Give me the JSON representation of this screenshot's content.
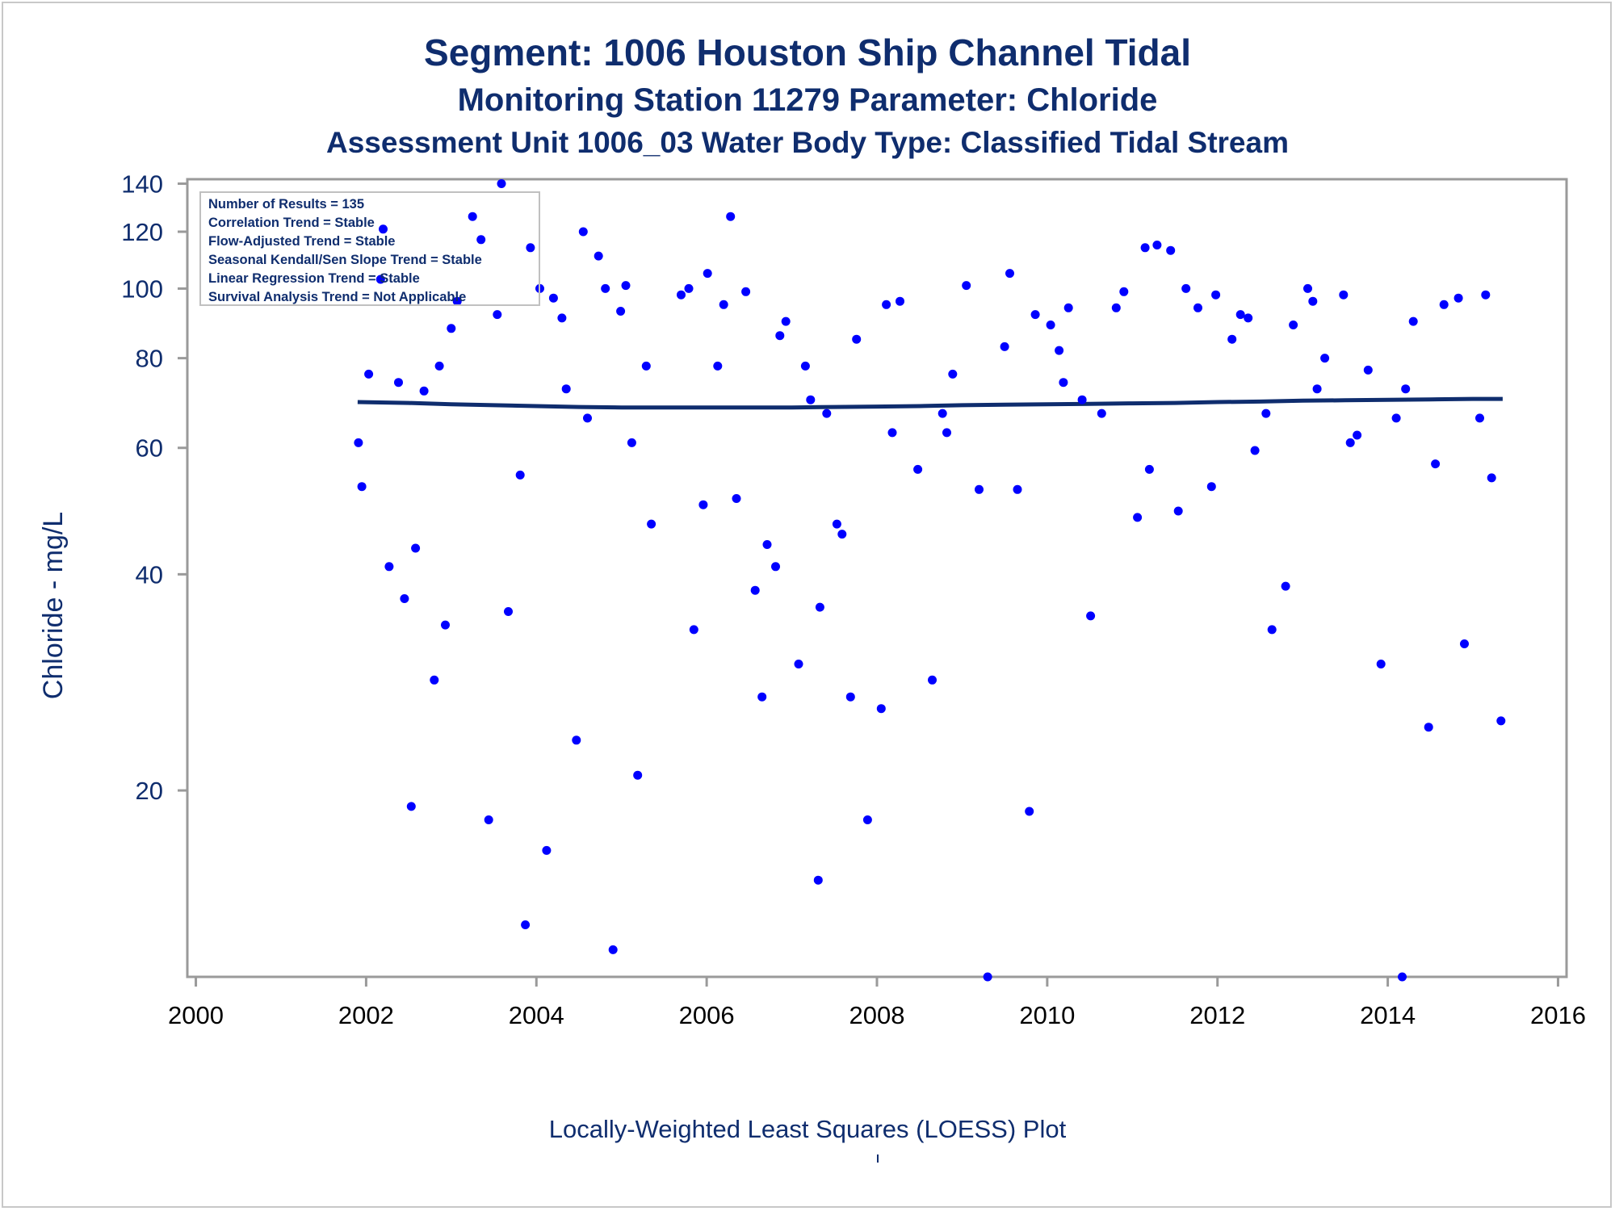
{
  "titles": {
    "line1": "Segment: 1006  Houston Ship Channel Tidal",
    "line2": "Monitoring Station 11279 Parameter: Chloride",
    "line3": "Assessment Unit 1006_03   Water Body Type: Classified Tidal Stream"
  },
  "footnote": "Locally-Weighted Least Squares (LOESS) Plot",
  "inset": [
    "Number of Results = 135",
    "Correlation Trend = Stable",
    "Flow-Adjusted Trend = Stable",
    "Seasonal Kendall/Sen Slope Trend = Stable",
    "Linear Regression Trend = Stable",
    "Survival Analysis Trend = Not Applicable"
  ],
  "colors": {
    "text": "#0f2d6e",
    "points": "#0000ff",
    "loess": "#0f2d6e",
    "axis": "#9a9a9a"
  },
  "chart_data": {
    "type": "scatter",
    "title": "Segment: 1006  Houston Ship Channel Tidal",
    "ylabel": "Chloride - mg/L",
    "xlabel": "",
    "yscale": "log",
    "ylim": [
      11,
      142
    ],
    "xlim": [
      1999.9,
      2016.1
    ],
    "xticks": [
      2000,
      2002,
      2004,
      2006,
      2008,
      2010,
      2012,
      2014,
      2016
    ],
    "yticks": [
      20,
      40,
      60,
      80,
      100,
      120,
      140
    ],
    "legend": "top-left",
    "grid": false,
    "series": [
      {
        "kind": "points",
        "points": [
          [
            2001.91,
            61
          ],
          [
            2001.95,
            53
          ],
          [
            2002.03,
            76
          ],
          [
            2002.17,
            103
          ],
          [
            2002.2,
            121
          ],
          [
            2002.27,
            41
          ],
          [
            2002.38,
            74
          ],
          [
            2002.45,
            37
          ],
          [
            2002.53,
            19
          ],
          [
            2002.58,
            43.5
          ],
          [
            2002.68,
            72
          ],
          [
            2002.8,
            28.5
          ],
          [
            2002.86,
            78
          ],
          [
            2002.93,
            34
          ],
          [
            2003.0,
            88
          ],
          [
            2003.07,
            96
          ],
          [
            2003.25,
            126
          ],
          [
            2003.35,
            117
          ],
          [
            2003.44,
            18.2
          ],
          [
            2003.54,
            92
          ],
          [
            2003.59,
            140
          ],
          [
            2003.67,
            35.5
          ],
          [
            2003.81,
            55
          ],
          [
            2003.87,
            13
          ],
          [
            2003.93,
            114
          ],
          [
            2004.04,
            100
          ],
          [
            2004.12,
            16.5
          ],
          [
            2004.2,
            97
          ],
          [
            2004.3,
            91
          ],
          [
            2004.35,
            72.5
          ],
          [
            2004.47,
            23.5
          ],
          [
            2004.55,
            120
          ],
          [
            2004.6,
            66
          ],
          [
            2004.73,
            111
          ],
          [
            2004.81,
            100
          ],
          [
            2004.9,
            12
          ],
          [
            2004.99,
            93
          ],
          [
            2005.05,
            101
          ],
          [
            2005.12,
            61
          ],
          [
            2005.19,
            21
          ],
          [
            2005.29,
            78
          ],
          [
            2005.35,
            47
          ],
          [
            2005.7,
            98
          ],
          [
            2005.79,
            100
          ],
          [
            2005.85,
            33.5
          ],
          [
            2005.96,
            50
          ],
          [
            2006.01,
            105
          ],
          [
            2006.13,
            78
          ],
          [
            2006.2,
            95
          ],
          [
            2006.28,
            126
          ],
          [
            2006.35,
            51
          ],
          [
            2006.46,
            99
          ],
          [
            2006.57,
            38
          ],
          [
            2006.65,
            27
          ],
          [
            2006.71,
            44
          ],
          [
            2006.81,
            41
          ],
          [
            2006.86,
            86
          ],
          [
            2006.93,
            90
          ],
          [
            2007.08,
            30
          ],
          [
            2007.16,
            78
          ],
          [
            2007.22,
            70
          ],
          [
            2007.31,
            15
          ],
          [
            2007.33,
            36
          ],
          [
            2007.41,
            67
          ],
          [
            2007.53,
            47
          ],
          [
            2007.59,
            45.5
          ],
          [
            2007.69,
            27
          ],
          [
            2007.76,
            85
          ],
          [
            2007.89,
            18.2
          ],
          [
            2008.05,
            26
          ],
          [
            2008.11,
            95
          ],
          [
            2008.18,
            63
          ],
          [
            2008.27,
            96
          ],
          [
            2008.48,
            56
          ],
          [
            2008.65,
            28.5
          ],
          [
            2008.77,
            67
          ],
          [
            2008.82,
            63
          ],
          [
            2008.89,
            76
          ],
          [
            2009.05,
            101
          ],
          [
            2009.2,
            52.5
          ],
          [
            2009.3,
            11
          ],
          [
            2009.5,
            83
          ],
          [
            2009.56,
            105
          ],
          [
            2009.65,
            52.5
          ],
          [
            2009.79,
            18.7
          ],
          [
            2009.86,
            92
          ],
          [
            2010.04,
            89
          ],
          [
            2010.14,
            82
          ],
          [
            2010.19,
            74
          ],
          [
            2010.25,
            94
          ],
          [
            2010.41,
            70
          ],
          [
            2010.51,
            35
          ],
          [
            2010.64,
            67
          ],
          [
            2010.81,
            94
          ],
          [
            2010.9,
            99
          ],
          [
            2011.06,
            48
          ],
          [
            2011.15,
            114
          ],
          [
            2011.2,
            56
          ],
          [
            2011.29,
            115
          ],
          [
            2011.45,
            113
          ],
          [
            2011.54,
            49
          ],
          [
            2011.63,
            100
          ],
          [
            2011.77,
            94
          ],
          [
            2011.93,
            53
          ],
          [
            2011.98,
            98
          ],
          [
            2012.17,
            85
          ],
          [
            2012.27,
            92
          ],
          [
            2012.36,
            91
          ],
          [
            2012.44,
            59.5
          ],
          [
            2012.57,
            67
          ],
          [
            2012.64,
            33.5
          ],
          [
            2012.8,
            38.5
          ],
          [
            2012.89,
            89
          ],
          [
            2013.06,
            100
          ],
          [
            2013.12,
            96
          ],
          [
            2013.17,
            72.5
          ],
          [
            2013.26,
            80
          ],
          [
            2013.48,
            98
          ],
          [
            2013.56,
            61
          ],
          [
            2013.64,
            62.5
          ],
          [
            2013.77,
            77
          ],
          [
            2013.92,
            30
          ],
          [
            2014.1,
            66
          ],
          [
            2014.17,
            11
          ],
          [
            2014.21,
            72.5
          ],
          [
            2014.3,
            90
          ],
          [
            2014.48,
            24.5
          ],
          [
            2014.56,
            57
          ],
          [
            2014.66,
            95
          ],
          [
            2014.83,
            97
          ],
          [
            2014.9,
            32
          ],
          [
            2015.08,
            66
          ],
          [
            2015.15,
            98
          ],
          [
            2015.22,
            54.5
          ],
          [
            2015.33,
            25
          ]
        ]
      },
      {
        "kind": "loess-line",
        "points": [
          [
            2001.9,
            69.5
          ],
          [
            2002.5,
            69.3
          ],
          [
            2003.0,
            69.0
          ],
          [
            2003.5,
            68.8
          ],
          [
            2004.0,
            68.6
          ],
          [
            2004.5,
            68.4
          ],
          [
            2005.0,
            68.3
          ],
          [
            2005.5,
            68.3
          ],
          [
            2006.0,
            68.3
          ],
          [
            2006.5,
            68.3
          ],
          [
            2007.0,
            68.3
          ],
          [
            2007.5,
            68.4
          ],
          [
            2008.0,
            68.5
          ],
          [
            2008.5,
            68.6
          ],
          [
            2009.0,
            68.8
          ],
          [
            2009.5,
            68.9
          ],
          [
            2010.0,
            69.0
          ],
          [
            2010.5,
            69.1
          ],
          [
            2011.0,
            69.2
          ],
          [
            2011.5,
            69.3
          ],
          [
            2012.0,
            69.5
          ],
          [
            2012.5,
            69.6
          ],
          [
            2013.0,
            69.8
          ],
          [
            2013.5,
            69.9
          ],
          [
            2014.0,
            70.0
          ],
          [
            2014.5,
            70.1
          ],
          [
            2015.0,
            70.2
          ],
          [
            2015.35,
            70.2
          ]
        ]
      }
    ]
  }
}
